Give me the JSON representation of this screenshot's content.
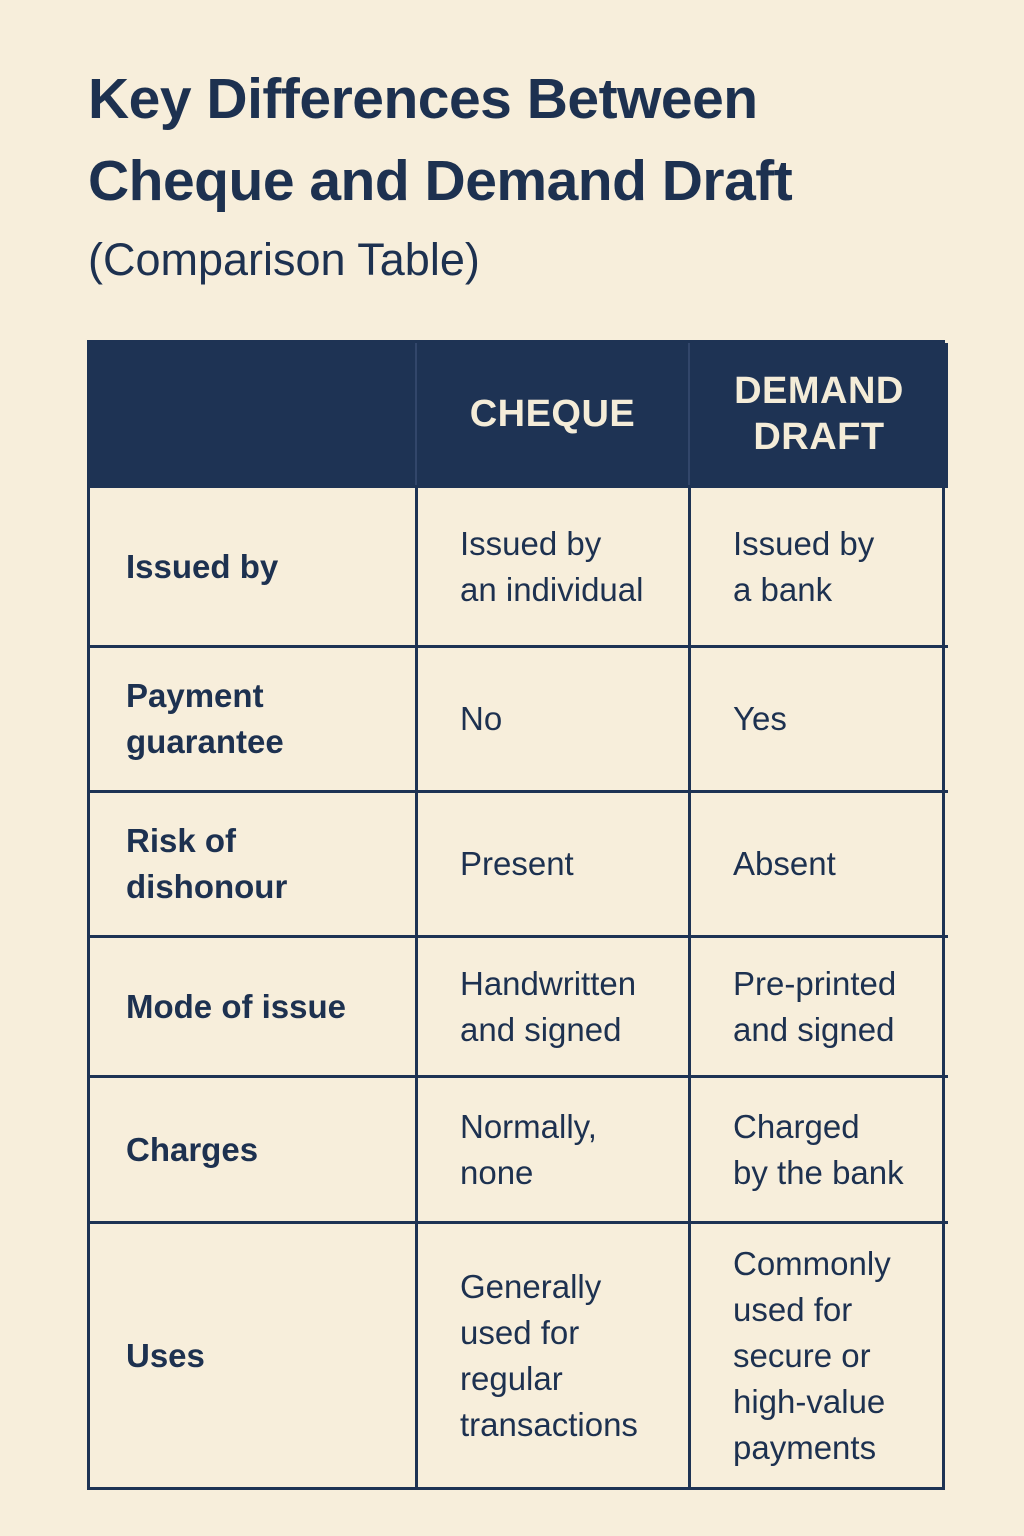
{
  "colors": {
    "navy": "#1e3354",
    "navy_text": "#1d3150",
    "cream": "#f7eedb",
    "header_text": "#f4ecd8"
  },
  "title": {
    "heading": "Key Differences Between\nCheque and Demand Draft",
    "subtitle": "(Comparison Table)"
  },
  "table": {
    "header": {
      "feature": "",
      "cheque": "CHEQUE",
      "demand_draft": "DEMAND\nDRAFT"
    },
    "rows": [
      {
        "label": "Issued by",
        "cheque": "Issued by\nan individual",
        "demand_draft": "Issued by\na bank"
      },
      {
        "label": "Payment\nguarantee",
        "cheque": "No",
        "demand_draft": "Yes"
      },
      {
        "label": "Risk of\ndishonour",
        "cheque": "Present",
        "demand_draft": "Absent"
      },
      {
        "label": "Mode of issue",
        "cheque": "Handwritten\nand signed",
        "demand_draft": "Pre-printed\nand signed"
      },
      {
        "label": "Charges",
        "cheque": "Normally,\nnone",
        "demand_draft": "Charged\nby the bank"
      },
      {
        "label": "Uses",
        "cheque": "Generally\nused for\nregular\ntransactions",
        "demand_draft": "Commonly\nused for\nsecure or\nhigh-value\npayments"
      }
    ]
  }
}
